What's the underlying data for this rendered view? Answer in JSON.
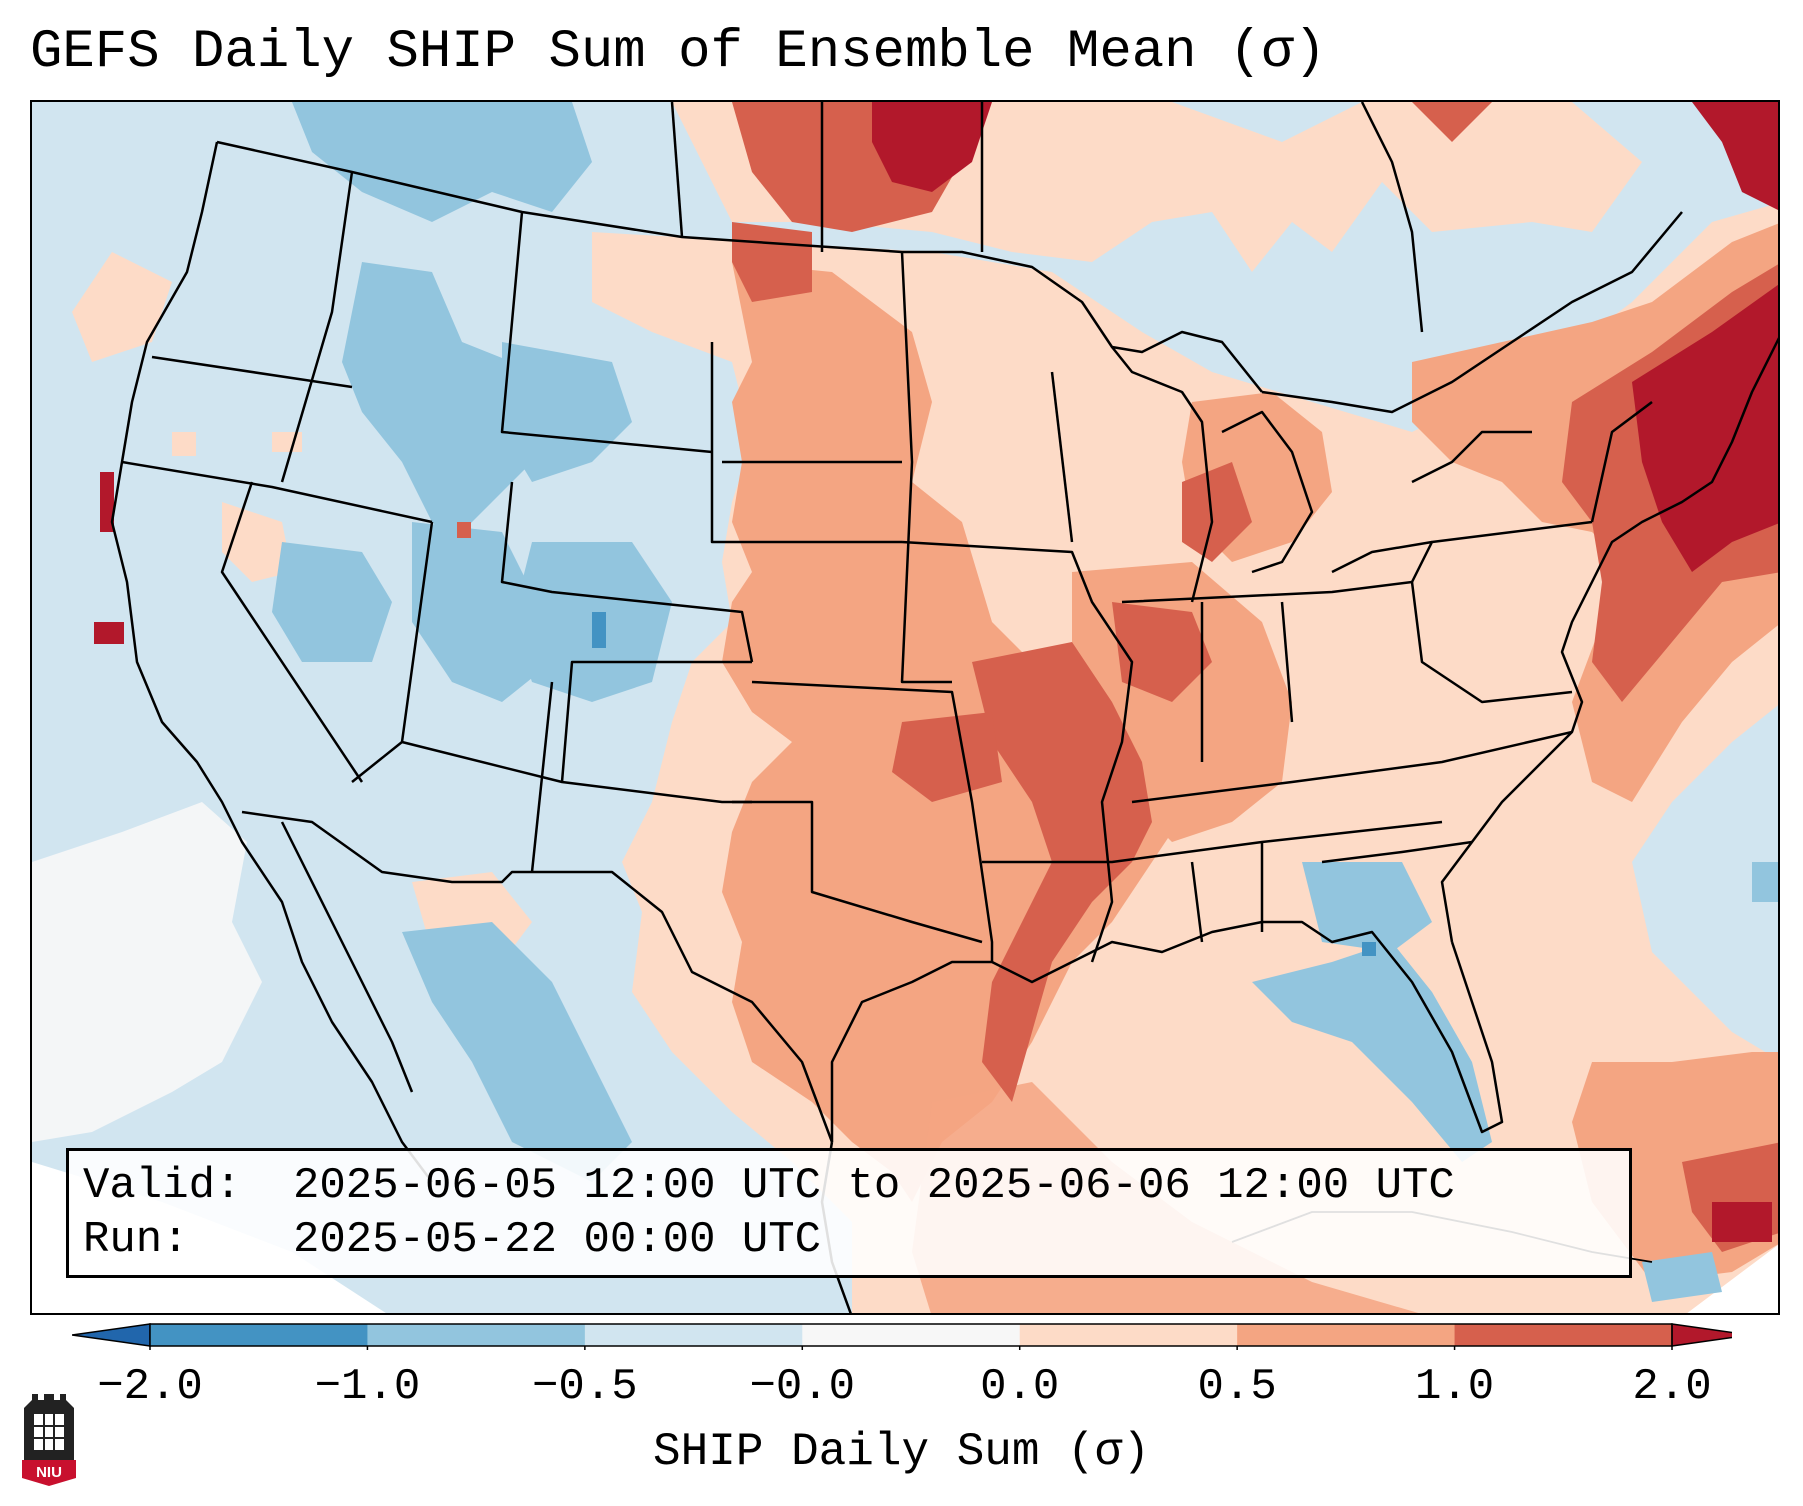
{
  "title": "GEFS Daily SHIP Sum of Ensemble Mean (σ)",
  "valid_label": "Valid:",
  "valid_value": "2025-06-05 12:00 UTC to 2025-06-06 12:00 UTC",
  "run_label": "Run:",
  "run_value": "2025-05-22 00:00 UTC",
  "colorbar": {
    "label": "SHIP Daily Sum (σ)",
    "ticks": [
      "−2.0",
      "−1.0",
      "−0.5",
      "−0.0",
      "0.0",
      "0.5",
      "1.0",
      "2.0"
    ],
    "bin_colors": [
      "#4393c3",
      "#92c5de",
      "#d1e5f0",
      "#f7f7f7",
      "#fddbc7",
      "#f4a582",
      "#d6604d"
    ],
    "under_color": "#2166ac",
    "over_color": "#b2182b"
  },
  "logo_text": "NIU",
  "colors": {
    "strong_negative": "#4393c3",
    "negative": "#92c5de",
    "weak_negative": "#d1e5f0",
    "neutral": "#f7f7f7",
    "weak_positive": "#fddbc7",
    "positive": "#f4a582",
    "strong_positive": "#d6604d",
    "extreme_positive": "#b2182b"
  }
}
